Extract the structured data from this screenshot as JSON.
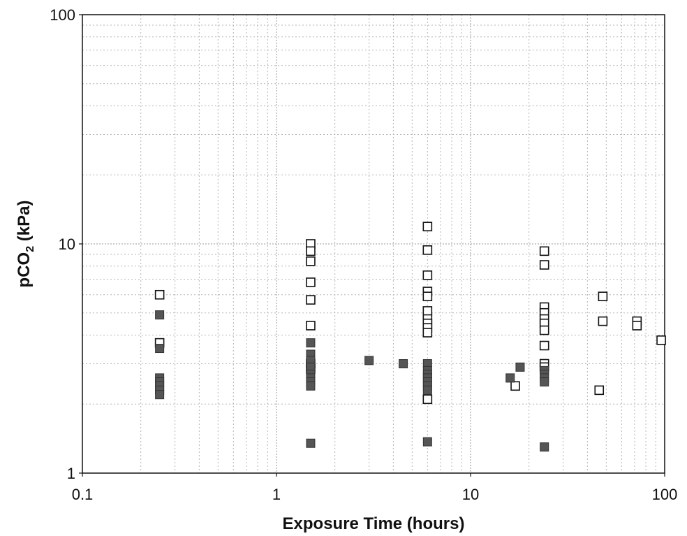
{
  "chart_data": {
    "type": "scatter",
    "title": "",
    "xlabel": "Exposure Time (hours)",
    "ylabel_main": "pCO",
    "ylabel_sub": "2",
    "ylabel_unit": " (kPa)",
    "xscale": "log",
    "yscale": "log",
    "xlim": [
      0.1,
      100
    ],
    "ylim": [
      1,
      100
    ],
    "grid": true,
    "legend": "none",
    "x_ticks": [
      {
        "value": 0.1,
        "label": "0.1"
      },
      {
        "value": 1,
        "label": "1"
      },
      {
        "value": 10,
        "label": "10"
      },
      {
        "value": 100,
        "label": "100"
      }
    ],
    "y_ticks": [
      {
        "value": 1,
        "label": "1"
      },
      {
        "value": 10,
        "label": "10"
      },
      {
        "value": 100,
        "label": "100"
      }
    ],
    "series": [
      {
        "marker": "open-square",
        "color": "#111111",
        "points": [
          [
            0.25,
            6.0
          ],
          [
            0.25,
            3.7
          ],
          [
            1.5,
            10.0
          ],
          [
            1.5,
            9.3
          ],
          [
            1.5,
            8.4
          ],
          [
            1.5,
            6.8
          ],
          [
            1.5,
            5.7
          ],
          [
            1.5,
            4.4
          ],
          [
            1.5,
            3.0
          ],
          [
            1.5,
            2.85
          ],
          [
            6.0,
            11.9
          ],
          [
            6.0,
            9.4
          ],
          [
            6.0,
            7.3
          ],
          [
            6.0,
            6.2
          ],
          [
            6.0,
            5.9
          ],
          [
            6.0,
            5.1
          ],
          [
            6.0,
            4.7
          ],
          [
            6.0,
            4.5
          ],
          [
            6.0,
            4.3
          ],
          [
            6.0,
            4.1
          ],
          [
            6.0,
            2.1
          ],
          [
            17.0,
            2.4
          ],
          [
            24.0,
            9.3
          ],
          [
            24.0,
            8.1
          ],
          [
            24.0,
            5.3
          ],
          [
            24.0,
            5.0
          ],
          [
            24.0,
            4.7
          ],
          [
            24.0,
            4.5
          ],
          [
            24.0,
            4.2
          ],
          [
            24.0,
            3.6
          ],
          [
            24.0,
            3.0
          ],
          [
            24.0,
            2.9
          ],
          [
            46.0,
            2.3
          ],
          [
            48.0,
            5.9
          ],
          [
            48.0,
            4.6
          ],
          [
            72.0,
            4.6
          ],
          [
            72.0,
            4.4
          ],
          [
            96.0,
            3.8
          ]
        ]
      },
      {
        "marker": "filled-square",
        "color": "#555555",
        "points": [
          [
            0.25,
            4.9
          ],
          [
            0.25,
            3.5
          ],
          [
            0.25,
            2.6
          ],
          [
            0.25,
            2.5
          ],
          [
            0.25,
            2.4
          ],
          [
            0.25,
            2.3
          ],
          [
            0.25,
            2.2
          ],
          [
            1.5,
            3.7
          ],
          [
            1.5,
            3.3
          ],
          [
            1.5,
            3.1
          ],
          [
            1.5,
            2.9
          ],
          [
            1.5,
            2.7
          ],
          [
            1.5,
            2.6
          ],
          [
            1.5,
            2.5
          ],
          [
            1.5,
            2.4
          ],
          [
            1.5,
            1.35
          ],
          [
            3.0,
            3.1
          ],
          [
            4.5,
            3.0
          ],
          [
            6.0,
            3.0
          ],
          [
            6.0,
            2.8
          ],
          [
            6.0,
            2.7
          ],
          [
            6.0,
            2.6
          ],
          [
            6.0,
            2.5
          ],
          [
            6.0,
            2.4
          ],
          [
            6.0,
            2.3
          ],
          [
            6.0,
            1.37
          ],
          [
            16.0,
            2.6
          ],
          [
            18.0,
            2.9
          ],
          [
            24.0,
            2.8
          ],
          [
            24.0,
            2.7
          ],
          [
            24.0,
            2.6
          ],
          [
            24.0,
            2.5
          ],
          [
            24.0,
            1.3
          ]
        ]
      }
    ]
  }
}
